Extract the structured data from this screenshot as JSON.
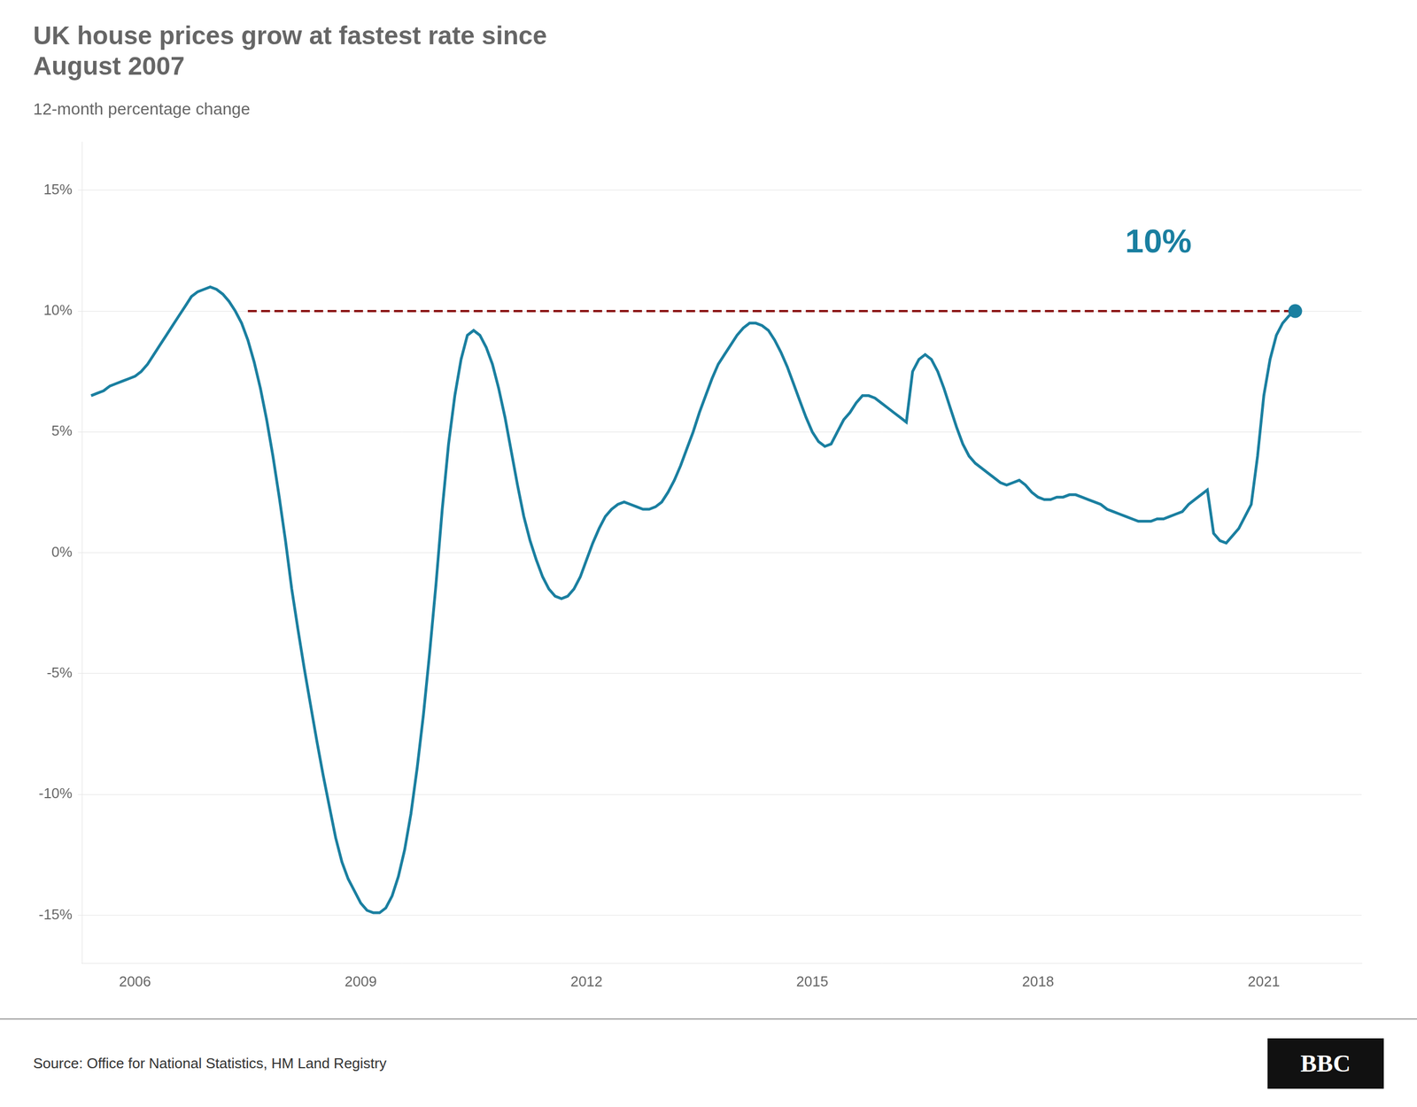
{
  "chart_data": {
    "type": "line",
    "title": "UK house prices grow at fastest rate since\nAugust 2007",
    "subtitle": "12-month percentage change",
    "source": "Source: Office for National Statistics, HM Land Registry",
    "logo": "BBC",
    "annotations": [
      {
        "text": "10%",
        "color": "#1a7fa0",
        "x": 2019.6,
        "y": 12.8
      }
    ],
    "grid": true,
    "xlim": [
      2005.3,
      2022.3
    ],
    "xticks": [
      2006,
      2009,
      2012,
      2015,
      2018,
      2021
    ],
    "ylim": [
      -17,
      17
    ],
    "yticks": [
      {
        "value": -15,
        "label": "-15%"
      },
      {
        "value": -10,
        "label": "-10%"
      },
      {
        "value": -5,
        "label": "-5%"
      },
      {
        "value": 0,
        "label": "0%"
      },
      {
        "value": 5,
        "label": "5%"
      },
      {
        "value": 10,
        "label": "10%"
      },
      {
        "value": 15,
        "label": "15%"
      }
    ],
    "series": [
      {
        "color": "#1a7fa0",
        "marker": "last",
        "line_style": "solid",
        "x": [
          2005.417,
          2005.5,
          2005.583,
          2005.667,
          2005.75,
          2005.833,
          2005.917,
          2006.0,
          2006.083,
          2006.167,
          2006.25,
          2006.333,
          2006.417,
          2006.5,
          2006.583,
          2006.667,
          2006.75,
          2006.833,
          2006.917,
          2007.0,
          2007.083,
          2007.167,
          2007.25,
          2007.333,
          2007.417,
          2007.5,
          2007.583,
          2007.667,
          2007.75,
          2007.833,
          2007.917,
          2008.0,
          2008.083,
          2008.167,
          2008.25,
          2008.333,
          2008.417,
          2008.5,
          2008.583,
          2008.667,
          2008.75,
          2008.833,
          2008.917,
          2009.0,
          2009.083,
          2009.167,
          2009.25,
          2009.333,
          2009.417,
          2009.5,
          2009.583,
          2009.667,
          2009.75,
          2009.833,
          2009.917,
          2010.0,
          2010.083,
          2010.167,
          2010.25,
          2010.333,
          2010.417,
          2010.5,
          2010.583,
          2010.667,
          2010.75,
          2010.833,
          2010.917,
          2011.0,
          2011.083,
          2011.167,
          2011.25,
          2011.333,
          2011.417,
          2011.5,
          2011.583,
          2011.667,
          2011.75,
          2011.833,
          2011.917,
          2012.0,
          2012.083,
          2012.167,
          2012.25,
          2012.333,
          2012.417,
          2012.5,
          2012.583,
          2012.667,
          2012.75,
          2012.833,
          2012.917,
          2013.0,
          2013.083,
          2013.167,
          2013.25,
          2013.333,
          2013.417,
          2013.5,
          2013.583,
          2013.667,
          2013.75,
          2013.833,
          2013.917,
          2014.0,
          2014.083,
          2014.167,
          2014.25,
          2014.333,
          2014.417,
          2014.5,
          2014.583,
          2014.667,
          2014.75,
          2014.833,
          2014.917,
          2015.0,
          2015.083,
          2015.167,
          2015.25,
          2015.333,
          2015.417,
          2015.5,
          2015.583,
          2015.667,
          2015.75,
          2015.833,
          2015.917,
          2016.0,
          2016.083,
          2016.167,
          2016.25,
          2016.333,
          2016.417,
          2016.5,
          2016.583,
          2016.667,
          2016.75,
          2016.833,
          2016.917,
          2017.0,
          2017.083,
          2017.167,
          2017.25,
          2017.333,
          2017.417,
          2017.5,
          2017.583,
          2017.667,
          2017.75,
          2017.833,
          2017.917,
          2018.0,
          2018.083,
          2018.167,
          2018.25,
          2018.333,
          2018.417,
          2018.5,
          2018.583,
          2018.667,
          2018.75,
          2018.833,
          2018.917,
          2019.0,
          2019.083,
          2019.167,
          2019.25,
          2019.333,
          2019.417,
          2019.5,
          2019.583,
          2019.667,
          2019.75,
          2019.833,
          2019.917,
          2020.0,
          2020.083,
          2020.167,
          2020.25,
          2020.333,
          2020.417,
          2020.5,
          2020.583,
          2020.667,
          2020.75,
          2020.833,
          2020.917,
          2021.0,
          2021.083,
          2021.167,
          2021.25,
          2021.333,
          2021.417
        ],
        "values": [
          6.5,
          6.6,
          6.7,
          6.9,
          7.0,
          7.1,
          7.2,
          7.3,
          7.5,
          7.8,
          8.2,
          8.6,
          9.0,
          9.4,
          9.8,
          10.2,
          10.6,
          10.8,
          10.9,
          11.0,
          10.9,
          10.7,
          10.4,
          10.0,
          9.5,
          8.8,
          7.9,
          6.8,
          5.5,
          4.0,
          2.3,
          0.5,
          -1.5,
          -3.2,
          -4.8,
          -6.3,
          -7.8,
          -9.2,
          -10.5,
          -11.8,
          -12.8,
          -13.5,
          -14.0,
          -14.5,
          -14.8,
          -14.9,
          -14.9,
          -14.7,
          -14.2,
          -13.4,
          -12.3,
          -10.8,
          -8.9,
          -6.7,
          -4.1,
          -1.3,
          1.8,
          4.5,
          6.5,
          8.0,
          9.0,
          9.2,
          9.0,
          8.5,
          7.8,
          6.8,
          5.6,
          4.2,
          2.8,
          1.5,
          0.5,
          -0.3,
          -1.0,
          -1.5,
          -1.8,
          -1.9,
          -1.8,
          -1.5,
          -1.0,
          -0.3,
          0.4,
          1.0,
          1.5,
          1.8,
          2.0,
          2.1,
          2.0,
          1.9,
          1.8,
          1.8,
          1.9,
          2.1,
          2.5,
          3.0,
          3.6,
          4.3,
          5.0,
          5.8,
          6.5,
          7.2,
          7.8,
          8.2,
          8.6,
          9.0,
          9.3,
          9.5,
          9.5,
          9.4,
          9.2,
          8.8,
          8.3,
          7.7,
          7.0,
          6.3,
          5.6,
          5.0,
          4.6,
          4.4,
          4.5,
          5.0,
          5.5,
          5.8,
          6.2,
          6.5,
          6.5,
          6.4,
          6.2,
          6.0,
          5.8,
          5.6,
          5.4,
          7.5,
          8.0,
          8.2,
          8.0,
          7.5,
          6.8,
          6.0,
          5.2,
          4.5,
          4.0,
          3.7,
          3.5,
          3.3,
          3.1,
          2.9,
          2.8,
          2.9,
          3.0,
          2.8,
          2.5,
          2.3,
          2.2,
          2.2,
          2.3,
          2.3,
          2.4,
          2.4,
          2.3,
          2.2,
          2.1,
          2.0,
          1.8,
          1.7,
          1.6,
          1.5,
          1.4,
          1.3,
          1.3,
          1.3,
          1.4,
          1.4,
          1.5,
          1.6,
          1.7,
          2.0,
          2.2,
          2.4,
          2.6,
          0.8,
          0.5,
          0.4,
          0.7,
          1.0,
          1.5,
          2.0,
          4.0,
          6.5,
          8.0,
          9.0,
          9.5,
          9.8,
          10.0
        ]
      },
      {
        "color": "#8b1010",
        "line_style": "dashed",
        "x": [
          2007.5,
          2021.417
        ],
        "values": [
          10.0,
          10.0
        ]
      }
    ]
  }
}
